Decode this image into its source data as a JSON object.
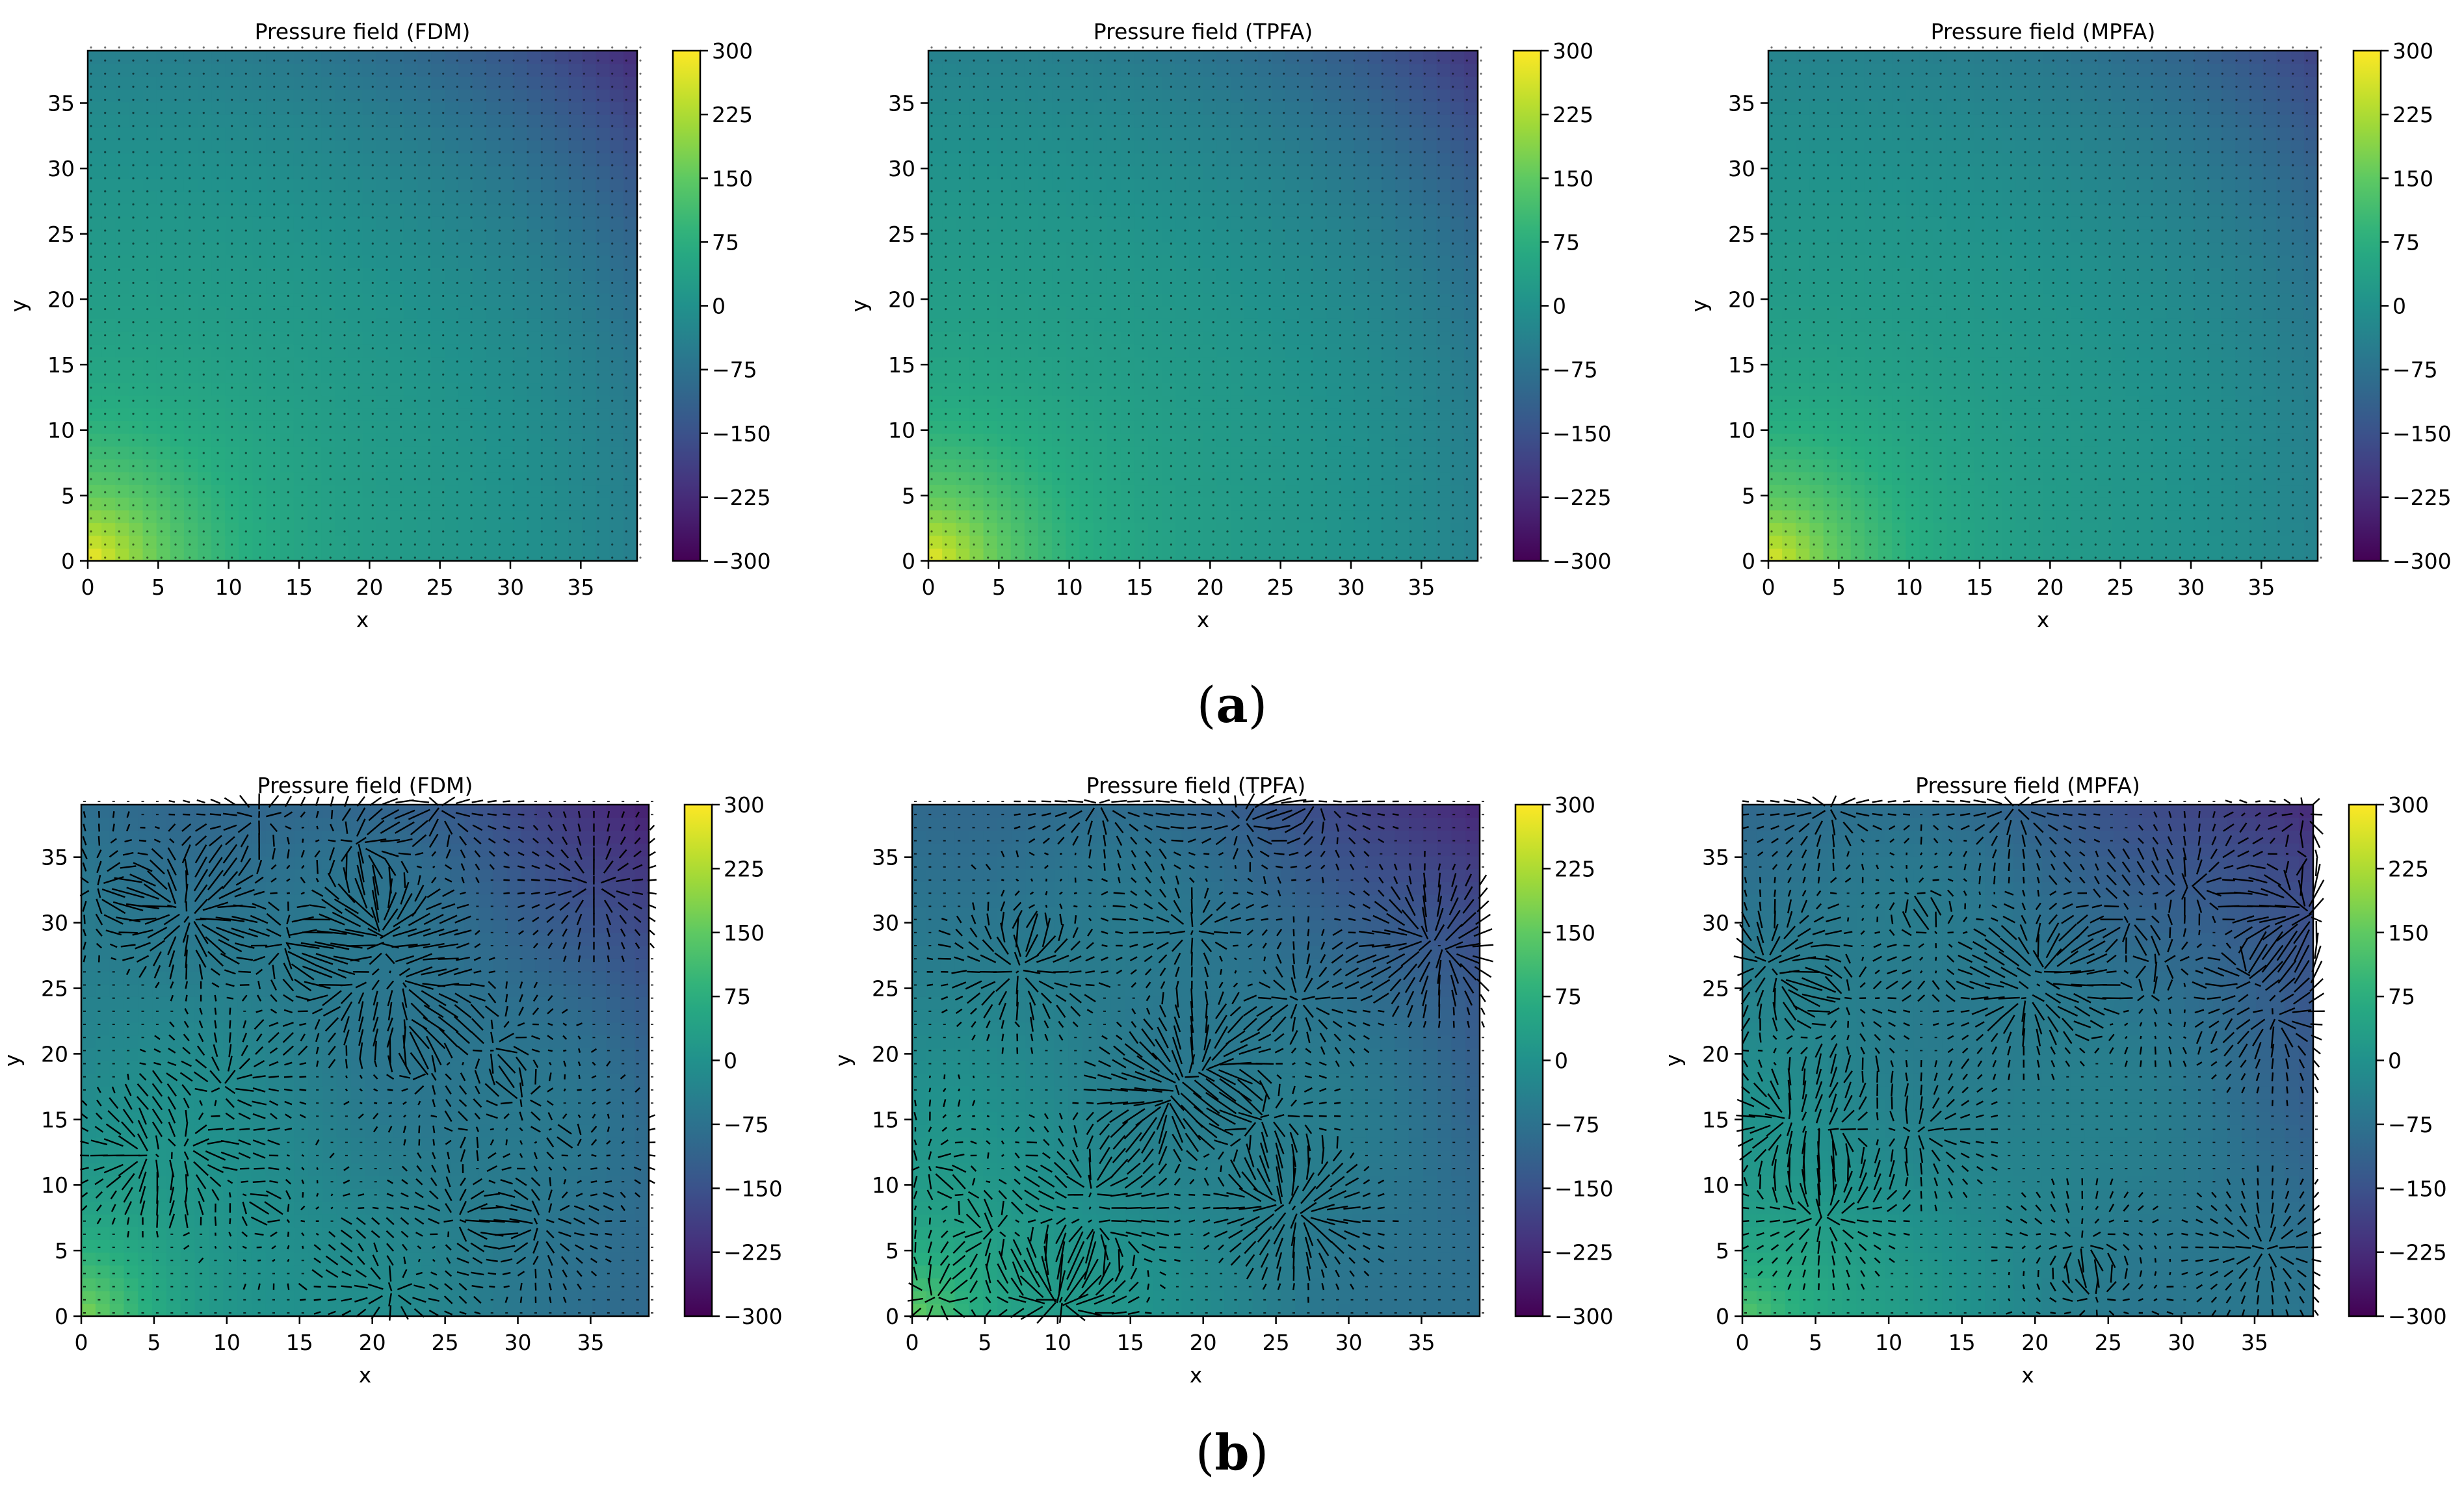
{
  "figure": {
    "label_a": "(a)",
    "label_a_letter": "a",
    "label_b": "(b)",
    "label_b_letter": "b"
  },
  "colors": {
    "cmap": "viridis",
    "arrow": "#000000",
    "frame": "#000000"
  },
  "chart_data": [
    {
      "id": "a-fdm",
      "row": "a",
      "type": "heatmap",
      "title": "Pressure field (FDM)",
      "xlabel": "x",
      "ylabel": "y",
      "xlim": [
        0,
        39
      ],
      "ylim": [
        0,
        39
      ],
      "xticks": [
        0,
        5,
        10,
        15,
        20,
        25,
        30,
        35
      ],
      "yticks": [
        0,
        5,
        10,
        15,
        20,
        25,
        30,
        35
      ],
      "colorbar": {
        "range": [
          -300,
          300
        ],
        "ticks": [
          300,
          225,
          150,
          75,
          0,
          -75,
          -150,
          -225,
          -300
        ],
        "tick_labels": [
          "300",
          "225",
          "150",
          "75",
          "0",
          "−75",
          "−150",
          "−225",
          "−300"
        ]
      },
      "field": {
        "description_values": {
          "origin": 290,
          "center": 20,
          "top_right": -240
        }
      },
      "quiver": "sparse_dots"
    },
    {
      "id": "a-tpfa",
      "row": "a",
      "type": "heatmap",
      "title": "Pressure field (TPFA)",
      "xlabel": "x",
      "ylabel": "y",
      "xlim": [
        0,
        39
      ],
      "ylim": [
        0,
        39
      ],
      "xticks": [
        0,
        5,
        10,
        15,
        20,
        25,
        30,
        35
      ],
      "yticks": [
        0,
        5,
        10,
        15,
        20,
        25,
        30,
        35
      ],
      "colorbar": {
        "range": [
          -300,
          300
        ],
        "ticks": [
          300,
          225,
          150,
          75,
          0,
          -75,
          -150,
          -225,
          -300
        ],
        "tick_labels": [
          "300",
          "225",
          "150",
          "75",
          "0",
          "−75",
          "−150",
          "−225",
          "−300"
        ]
      },
      "field": {
        "description_values": {
          "origin": 280,
          "center": 20,
          "top_right": -220
        }
      },
      "quiver": "sparse_dots"
    },
    {
      "id": "a-mpfa",
      "row": "a",
      "type": "heatmap",
      "title": "Pressure field (MPFA)",
      "xlabel": "x",
      "ylabel": "y",
      "xlim": [
        0,
        39
      ],
      "ylim": [
        0,
        39
      ],
      "xticks": [
        0,
        5,
        10,
        15,
        20,
        25,
        30,
        35
      ],
      "yticks": [
        0,
        5,
        10,
        15,
        20,
        25,
        30,
        35
      ],
      "colorbar": {
        "range": [
          -300,
          300
        ],
        "ticks": [
          300,
          225,
          150,
          75,
          0,
          -75,
          -150,
          -225,
          -300
        ],
        "tick_labels": [
          "300",
          "225",
          "150",
          "75",
          "0",
          "−75",
          "−150",
          "−225",
          "−300"
        ]
      },
      "field": {
        "description_values": {
          "origin": 270,
          "center": 15,
          "top_right": -190
        }
      },
      "quiver": "sparse_dots"
    },
    {
      "id": "b-fdm",
      "row": "b",
      "type": "heatmap",
      "title": "Pressure field (FDM)",
      "xlabel": "x",
      "ylabel": "y",
      "xlim": [
        0,
        39
      ],
      "ylim": [
        0,
        39
      ],
      "xticks": [
        0,
        5,
        10,
        15,
        20,
        25,
        30,
        35
      ],
      "yticks": [
        0,
        5,
        10,
        15,
        20,
        25,
        30,
        35
      ],
      "colorbar": {
        "range": [
          -300,
          300
        ],
        "ticks": [
          300,
          225,
          150,
          75,
          0,
          -75,
          -150,
          -225,
          -300
        ],
        "tick_labels": [
          "300",
          "225",
          "150",
          "75",
          "0",
          "−75",
          "−150",
          "−225",
          "−300"
        ]
      },
      "field": {
        "description_values": {
          "origin": 200,
          "center": -40,
          "top_right": -230
        }
      },
      "quiver": "dense_arrows"
    },
    {
      "id": "b-tpfa",
      "row": "b",
      "type": "heatmap",
      "title": "Pressure field (TPFA)",
      "xlabel": "x",
      "ylabel": "y",
      "xlim": [
        0,
        39
      ],
      "ylim": [
        0,
        39
      ],
      "xticks": [
        0,
        5,
        10,
        15,
        20,
        25,
        30,
        35
      ],
      "yticks": [
        0,
        5,
        10,
        15,
        20,
        25,
        30,
        35
      ],
      "colorbar": {
        "range": [
          -300,
          300
        ],
        "ticks": [
          300,
          225,
          150,
          75,
          0,
          -75,
          -150,
          -225,
          -300
        ],
        "tick_labels": [
          "300",
          "225",
          "150",
          "75",
          "0",
          "−75",
          "−150",
          "−225",
          "−300"
        ]
      },
      "field": {
        "description_values": {
          "origin": 190,
          "center": -40,
          "top_right": -230
        }
      },
      "quiver": "dense_arrows"
    },
    {
      "id": "b-mpfa",
      "row": "b",
      "type": "heatmap",
      "title": "Pressure field (MPFA)",
      "xlabel": "x",
      "ylabel": "y",
      "xlim": [
        0,
        39
      ],
      "ylim": [
        0,
        39
      ],
      "xticks": [
        0,
        5,
        10,
        15,
        20,
        25,
        30,
        35
      ],
      "yticks": [
        0,
        5,
        10,
        15,
        20,
        25,
        30,
        35
      ],
      "colorbar": {
        "range": [
          -300,
          300
        ],
        "ticks": [
          300,
          225,
          150,
          75,
          0,
          -75,
          -150,
          -225,
          -300
        ],
        "tick_labels": [
          "300",
          "225",
          "150",
          "75",
          "0",
          "−75",
          "−150",
          "−225",
          "−300"
        ]
      },
      "field": {
        "description_values": {
          "origin": 170,
          "center": -40,
          "top_right": -230
        }
      },
      "quiver": "dense_arrows"
    }
  ]
}
